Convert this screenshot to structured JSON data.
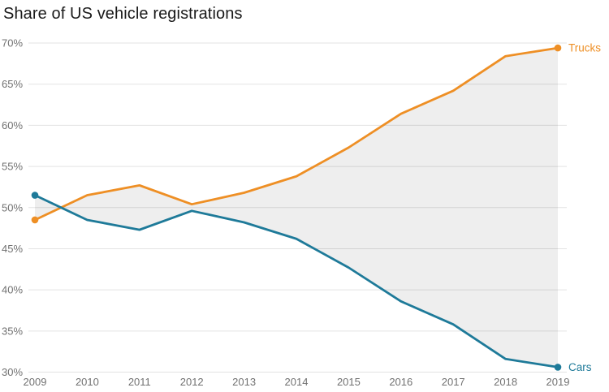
{
  "title": "Share of US vehicle registrations",
  "colors": {
    "background": "#ffffff",
    "title_text": "#1a1a1a",
    "axis_label": "#717171",
    "gridline": "#e3e3e3"
  },
  "chart_data": {
    "type": "line",
    "title": "Share of US vehicle registrations",
    "x": [
      2009,
      2010,
      2011,
      2012,
      2013,
      2014,
      2015,
      2016,
      2017,
      2018,
      2019
    ],
    "xticks": [
      "2009",
      "2010",
      "2011",
      "2012",
      "2013",
      "2014",
      "2015",
      "2016",
      "2017",
      "2018",
      "2019"
    ],
    "series": [
      {
        "name": "Trucks",
        "color": "#ee8f25",
        "values": [
          48.5,
          51.5,
          52.7,
          50.4,
          51.8,
          53.8,
          57.3,
          61.4,
          64.2,
          68.4,
          69.4
        ]
      },
      {
        "name": "Cars",
        "color": "#1e7a99",
        "values": [
          51.5,
          48.5,
          47.3,
          49.6,
          48.2,
          46.2,
          42.7,
          38.6,
          35.8,
          31.6,
          30.6
        ]
      }
    ],
    "ylim": [
      30,
      70
    ],
    "yticks": [
      "30%",
      "35%",
      "40%",
      "45%",
      "50%",
      "55%",
      "60%",
      "65%",
      "70%"
    ],
    "xlabel": "",
    "ylabel": "",
    "grid": true,
    "legend_position": "end-of-line",
    "area_between_series": true,
    "area_between_color": "#000000",
    "area_between_opacity": 0.065,
    "marker_points": "first-and-last"
  }
}
